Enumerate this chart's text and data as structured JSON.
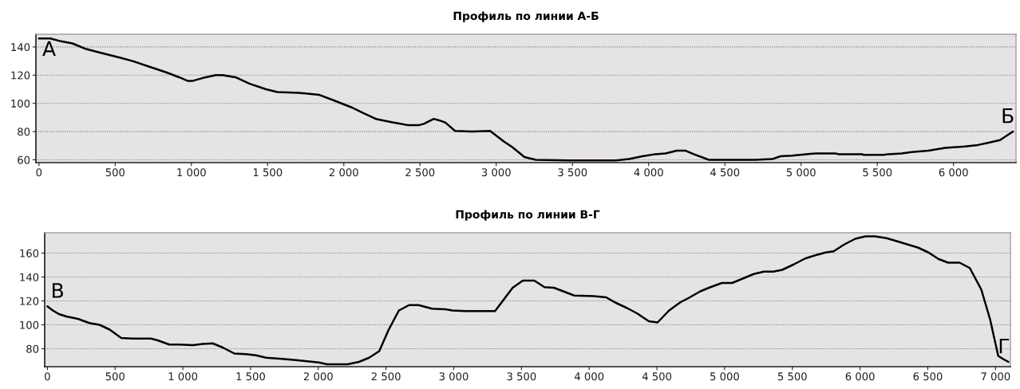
{
  "chart_data": [
    {
      "type": "line",
      "title": "Профиль по линии А-Б",
      "x": [
        0,
        75,
        145,
        220,
        310,
        400,
        530,
        615,
        725,
        835,
        920,
        975,
        1010,
        1075,
        1160,
        1205,
        1290,
        1380,
        1490,
        1565,
        1705,
        1750,
        1840,
        1925,
        2055,
        2120,
        2210,
        2320,
        2425,
        2490,
        2525,
        2590,
        2625,
        2665,
        2730,
        2840,
        2960,
        3050,
        3105,
        3185,
        3260,
        3480,
        3785,
        3870,
        3960,
        4045,
        4110,
        4185,
        4240,
        4295,
        4395,
        4700,
        4810,
        4865,
        4940,
        5095,
        5225,
        5245,
        5400,
        5410,
        5540,
        5575,
        5660,
        5725,
        5835,
        5945,
        6075,
        6160,
        6225,
        6305,
        6390
      ],
      "series": [
        {
          "color": "#000000",
          "values": [
            146,
            146,
            144,
            142.5,
            138.5,
            136,
            132.5,
            130,
            126,
            122,
            118.5,
            116,
            116,
            118,
            120,
            120,
            118.5,
            114,
            110,
            108,
            107.5,
            107,
            106,
            102.5,
            97,
            93.5,
            89,
            86.5,
            84.5,
            84.5,
            85.5,
            89,
            88,
            86.5,
            80.5,
            80,
            80.5,
            73,
            69,
            62,
            60,
            59.5,
            59.5,
            60.5,
            62.5,
            64,
            64.5,
            66.5,
            66.5,
            64,
            60,
            60,
            60.5,
            62.5,
            63,
            64.5,
            64.5,
            64,
            64,
            63.5,
            63.5,
            64,
            64.5,
            65.5,
            66.5,
            68.5,
            69.5,
            70.5,
            72,
            74,
            80
          ]
        }
      ],
      "xlim": [
        -20,
        6410
      ],
      "ylim": [
        58,
        149
      ],
      "xticks": [
        0,
        500,
        {
          "value": 1000,
          "label": "1 000"
        },
        {
          "value": 1500,
          "label": "1 500"
        },
        {
          "value": 2000,
          "label": "2 000"
        },
        {
          "value": 2500,
          "label": "2 500"
        },
        {
          "value": 3000,
          "label": "3 000"
        },
        {
          "value": 3500,
          "label": "3 500"
        },
        {
          "value": 4000,
          "label": "4 000"
        },
        {
          "value": 4500,
          "label": "4 500"
        },
        {
          "value": 5000,
          "label": "5 000"
        },
        {
          "value": 5500,
          "label": "5 500"
        },
        {
          "value": 6000,
          "label": "6 000"
        }
      ],
      "yticks": [
        60,
        80,
        100,
        120,
        140
      ],
      "grid": "y",
      "annotations": [
        {
          "text": "А",
          "x": 0,
          "y": 146
        },
        {
          "text": "Б",
          "x": 6390,
          "y": 80
        }
      ]
    },
    {
      "type": "line",
      "title": "Профиль по линии В-Г",
      "x": [
        0,
        40,
        85,
        140,
        225,
        310,
        385,
        460,
        545,
        630,
        765,
        815,
        900,
        975,
        1075,
        1145,
        1220,
        1295,
        1380,
        1465,
        1540,
        1615,
        1735,
        1835,
        2005,
        2065,
        2215,
        2300,
        2375,
        2450,
        2520,
        2595,
        2670,
        2740,
        2840,
        2940,
        2990,
        3085,
        3160,
        3305,
        3405,
        3435,
        3510,
        3595,
        3670,
        3740,
        3890,
        4035,
        4125,
        4195,
        4280,
        4355,
        4440,
        4505,
        4590,
        4675,
        4735,
        4820,
        4895,
        4980,
        5055,
        5130,
        5215,
        5290,
        5360,
        5425,
        5510,
        5595,
        5680,
        5745,
        5805,
        5880,
        5965,
        6040,
        6110,
        6195,
        6285,
        6430,
        6505,
        6580,
        6650,
        6735,
        6810,
        6895,
        6960,
        7020,
        7055,
        7095
      ],
      "series": [
        {
          "color": "#000000",
          "values": [
            115.5,
            112,
            109,
            107,
            105,
            101.5,
            100,
            96,
            89,
            88.5,
            88.5,
            87,
            83.5,
            83.5,
            83,
            84,
            84.5,
            81,
            76,
            75.5,
            74.5,
            72.5,
            71.5,
            70.5,
            68.5,
            67,
            67,
            69,
            72.5,
            78,
            96,
            112,
            116.5,
            116.5,
            113.5,
            113,
            112,
            111.5,
            111.5,
            111.5,
            126.5,
            131,
            137,
            137,
            131.5,
            131,
            124.5,
            124,
            123,
            118.5,
            114,
            109.5,
            103,
            102,
            112,
            119,
            122.5,
            128,
            131.5,
            135,
            135,
            138.5,
            142.5,
            144.5,
            144.5,
            146,
            150.5,
            155.5,
            158.5,
            160.5,
            161.5,
            167,
            172,
            174,
            174,
            172.5,
            169.5,
            164.5,
            160.5,
            155,
            152,
            152,
            147.5,
            129.5,
            104.5,
            74,
            71.5,
            69
          ]
        }
      ],
      "xlim": [
        -20,
        7110
      ],
      "ylim": [
        65,
        177
      ],
      "xticks": [
        0,
        500,
        {
          "value": 1000,
          "label": "1 000"
        },
        {
          "value": 1500,
          "label": "1 500"
        },
        {
          "value": 2000,
          "label": "2 000"
        },
        {
          "value": 2500,
          "label": "2 500"
        },
        {
          "value": 3000,
          "label": "3 000"
        },
        {
          "value": 3500,
          "label": "3 500"
        },
        {
          "value": 4000,
          "label": "4 000"
        },
        {
          "value": 4500,
          "label": "4 500"
        },
        {
          "value": 5000,
          "label": "5 000"
        },
        {
          "value": 5500,
          "label": "5 500"
        },
        {
          "value": 6000,
          "label": "6 000"
        },
        {
          "value": 6500,
          "label": "6 500"
        },
        {
          "value": 7000,
          "label": "7 000"
        }
      ],
      "yticks": [
        80,
        100,
        120,
        140,
        160
      ],
      "grid": "y",
      "annotations": [
        {
          "text": "В",
          "x": 0,
          "y": 115.5
        },
        {
          "text": "Г",
          "x": 7095,
          "y": 69
        }
      ]
    }
  ]
}
